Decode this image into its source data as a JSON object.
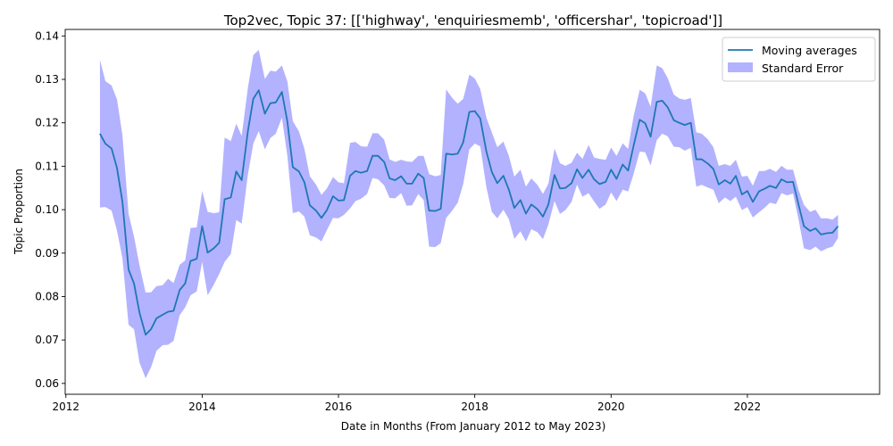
{
  "chart_data": {
    "type": "line",
    "title": "Top2vec, Topic 37: [['highway', 'enquiriesmemb', 'officershar', 'topicroad']]",
    "xlabel": "Date in Months (From January 2012 to May 2023)",
    "ylabel": "Topic Proportion",
    "xlim": [
      2011.99,
      2023.94
    ],
    "ylim": [
      0.0575,
      0.1415
    ],
    "x_ticks": [
      2012,
      2014,
      2016,
      2018,
      2020,
      2022
    ],
    "y_ticks": [
      0.06,
      0.07,
      0.08,
      0.09,
      0.1,
      0.11,
      0.12,
      0.13,
      0.14
    ],
    "y_tick_labels": [
      "0.06",
      "0.07",
      "0.08",
      "0.09",
      "0.10",
      "0.11",
      "0.12",
      "0.13",
      "0.14"
    ],
    "grid": false,
    "legend_position": "top-right",
    "legend": [
      "Moving averages",
      "Standard Error"
    ],
    "colors": {
      "line": "#1f77b4",
      "band": "#0000ff",
      "band_opacity": 0.3
    },
    "series": [
      {
        "name": "Moving averages",
        "x": [
          2012.5,
          2012.58,
          2012.67,
          2012.75,
          2012.83,
          2012.92,
          2013.0,
          2013.08,
          2013.17,
          2013.25,
          2013.33,
          2013.42,
          2013.5,
          2013.58,
          2013.67,
          2013.75,
          2013.83,
          2013.92,
          2014.0,
          2014.08,
          2014.17,
          2014.25,
          2014.33,
          2014.42,
          2014.5,
          2014.58,
          2014.67,
          2014.75,
          2014.83,
          2014.92,
          2015.0,
          2015.08,
          2015.17,
          2015.25,
          2015.33,
          2015.42,
          2015.5,
          2015.58,
          2015.67,
          2015.75,
          2015.83,
          2015.92,
          2016.0,
          2016.08,
          2016.17,
          2016.25,
          2016.33,
          2016.42,
          2016.5,
          2016.58,
          2016.67,
          2016.75,
          2016.83,
          2016.92,
          2017.0,
          2017.08,
          2017.17,
          2017.25,
          2017.33,
          2017.42,
          2017.5,
          2017.58,
          2017.67,
          2017.75,
          2017.83,
          2017.92,
          2018.0,
          2018.08,
          2018.17,
          2018.25,
          2018.33,
          2018.42,
          2018.5,
          2018.58,
          2018.67,
          2018.75,
          2018.83,
          2018.92,
          2019.0,
          2019.08,
          2019.17,
          2019.25,
          2019.33,
          2019.42,
          2019.5,
          2019.58,
          2019.67,
          2019.75,
          2019.83,
          2019.92,
          2020.0,
          2020.08,
          2020.17,
          2020.25,
          2020.33,
          2020.42,
          2020.5,
          2020.58,
          2020.67,
          2020.75,
          2020.83,
          2020.92,
          2021.0,
          2021.08,
          2021.17,
          2021.25,
          2021.33,
          2021.42,
          2021.5,
          2021.58,
          2021.67,
          2021.75,
          2021.83,
          2021.92,
          2022.0,
          2022.08,
          2022.17,
          2022.25,
          2022.33,
          2022.42,
          2022.5,
          2022.58,
          2022.67,
          2022.75,
          2022.83,
          2022.92,
          2023.0,
          2023.08,
          2023.17,
          2023.25,
          2023.33
        ],
        "y": [
          0.1175,
          0.1152,
          0.1141,
          0.1096,
          0.1018,
          0.0862,
          0.083,
          0.0763,
          0.0712,
          0.0725,
          0.075,
          0.0758,
          0.0765,
          0.0767,
          0.0815,
          0.083,
          0.0882,
          0.0887,
          0.0962,
          0.0901,
          0.0911,
          0.0924,
          0.1024,
          0.1028,
          0.1088,
          0.1068,
          0.118,
          0.1255,
          0.1275,
          0.1221,
          0.1245,
          0.1247,
          0.1271,
          0.1203,
          0.1098,
          0.1088,
          0.1063,
          0.101,
          0.0998,
          0.0981,
          0.0999,
          0.1031,
          0.1021,
          0.1022,
          0.1078,
          0.1089,
          0.1085,
          0.1089,
          0.1124,
          0.1124,
          0.111,
          0.1072,
          0.1068,
          0.1077,
          0.106,
          0.106,
          0.1083,
          0.1073,
          0.0998,
          0.0997,
          0.1002,
          0.1129,
          0.1127,
          0.1129,
          0.1155,
          0.1225,
          0.1227,
          0.121,
          0.1134,
          0.1087,
          0.1061,
          0.1078,
          0.1046,
          0.1004,
          0.1022,
          0.0991,
          0.1012,
          0.1001,
          0.0984,
          0.1012,
          0.108,
          0.1049,
          0.105,
          0.1061,
          0.1093,
          0.1073,
          0.1092,
          0.107,
          0.1059,
          0.1064,
          0.1092,
          0.1071,
          0.1104,
          0.109,
          0.1147,
          0.1207,
          0.1199,
          0.1168,
          0.1248,
          0.1251,
          0.1236,
          0.1206,
          0.12,
          0.1195,
          0.12,
          0.1116,
          0.1116,
          0.1106,
          0.1094,
          0.1058,
          0.1068,
          0.106,
          0.1078,
          0.1035,
          0.1043,
          0.1018,
          0.1042,
          0.1048,
          0.1055,
          0.105,
          0.107,
          0.1063,
          0.1064,
          0.1012,
          0.0962,
          0.0951,
          0.0957,
          0.0943,
          0.0946,
          0.0947,
          0.0962
        ]
      },
      {
        "name": "Standard Error",
        "type": "band",
        "lower": [
          0.1005,
          0.1006,
          0.0998,
          0.0952,
          0.0888,
          0.0735,
          0.0725,
          0.0648,
          0.0612,
          0.0637,
          0.0675,
          0.0688,
          0.0689,
          0.0698,
          0.0757,
          0.0775,
          0.0803,
          0.0812,
          0.088,
          0.0803,
          0.0827,
          0.0852,
          0.088,
          0.0898,
          0.0976,
          0.0968,
          0.108,
          0.1152,
          0.1181,
          0.1139,
          0.1165,
          0.1175,
          0.1212,
          0.1124,
          0.0992,
          0.0996,
          0.0984,
          0.0941,
          0.0936,
          0.0927,
          0.0953,
          0.0981,
          0.098,
          0.0988,
          0.1003,
          0.102,
          0.1025,
          0.1036,
          0.1073,
          0.107,
          0.1056,
          0.1027,
          0.1026,
          0.1038,
          0.1009,
          0.101,
          0.1036,
          0.1022,
          0.0915,
          0.0914,
          0.0923,
          0.0981,
          0.0998,
          0.1016,
          0.1059,
          0.1139,
          0.1152,
          0.1146,
          0.1052,
          0.0995,
          0.098,
          0.1,
          0.0978,
          0.0933,
          0.095,
          0.0927,
          0.0955,
          0.0948,
          0.0932,
          0.0966,
          0.102,
          0.099,
          0.0999,
          0.1018,
          0.1058,
          0.103,
          0.1038,
          0.1019,
          0.1002,
          0.1012,
          0.104,
          0.102,
          0.1046,
          0.1042,
          0.1082,
          0.1134,
          0.1132,
          0.1102,
          0.116,
          0.1175,
          0.1169,
          0.1145,
          0.1144,
          0.1136,
          0.1142,
          0.1053,
          0.1057,
          0.1051,
          0.1046,
          0.1015,
          0.1028,
          0.102,
          0.103,
          0.0999,
          0.1006,
          0.0982,
          0.0994,
          0.1004,
          0.1016,
          0.1013,
          0.1038,
          0.1033,
          0.1037,
          0.0978,
          0.0911,
          0.0907,
          0.0915,
          0.0904,
          0.0911,
          0.0915,
          0.0935
        ],
        "upper": [
          0.1345,
          0.1296,
          0.1286,
          0.1254,
          0.1172,
          0.099,
          0.0938,
          0.0872,
          0.0809,
          0.081,
          0.0824,
          0.0826,
          0.0841,
          0.0831,
          0.0873,
          0.0883,
          0.0958,
          0.0959,
          0.1043,
          0.0995,
          0.0992,
          0.0994,
          0.1166,
          0.1158,
          0.1198,
          0.117,
          0.128,
          0.1356,
          0.1368,
          0.1301,
          0.132,
          0.1318,
          0.1332,
          0.1295,
          0.1204,
          0.118,
          0.114,
          0.1077,
          0.1058,
          0.1034,
          0.1049,
          0.1075,
          0.1063,
          0.1061,
          0.1154,
          0.1156,
          0.1146,
          0.1145,
          0.1176,
          0.1176,
          0.1161,
          0.1116,
          0.111,
          0.1115,
          0.1111,
          0.111,
          0.1124,
          0.1124,
          0.1082,
          0.1077,
          0.108,
          0.1277,
          0.1257,
          0.1244,
          0.1255,
          0.1311,
          0.1302,
          0.1278,
          0.1212,
          0.1178,
          0.1144,
          0.1157,
          0.1124,
          0.1076,
          0.1092,
          0.1053,
          0.1072,
          0.1057,
          0.1036,
          0.106,
          0.1141,
          0.1107,
          0.1101,
          0.1108,
          0.1131,
          0.1117,
          0.1149,
          0.112,
          0.1117,
          0.1115,
          0.1143,
          0.1124,
          0.1153,
          0.114,
          0.1215,
          0.1276,
          0.1268,
          0.1237,
          0.1332,
          0.1326,
          0.1303,
          0.1265,
          0.1256,
          0.1253,
          0.1257,
          0.1178,
          0.1175,
          0.1162,
          0.1144,
          0.1101,
          0.1105,
          0.1101,
          0.1115,
          0.1076,
          0.1078,
          0.1055,
          0.1089,
          0.1089,
          0.1094,
          0.1087,
          0.1101,
          0.1092,
          0.1092,
          0.1046,
          0.1011,
          0.0995,
          0.1,
          0.098,
          0.098,
          0.0977,
          0.0988
        ]
      }
    ]
  }
}
